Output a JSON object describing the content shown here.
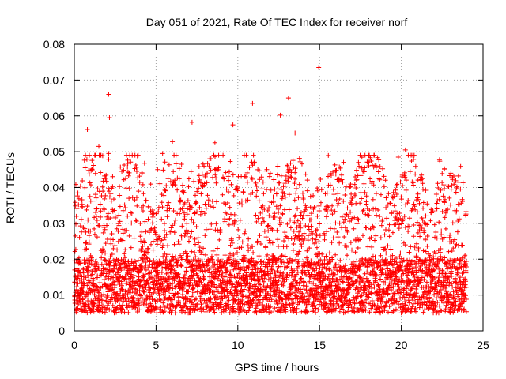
{
  "chart_data": {
    "type": "scatter",
    "title": "Day 051 of 2021, Rate Of TEC Index for receiver norf",
    "xlabel": "GPS time / hours",
    "ylabel": "ROTI / TECUs",
    "xlim": [
      0,
      25
    ],
    "ylim": [
      0,
      0.08
    ],
    "x_ticks": [
      0,
      5,
      10,
      15,
      20,
      25
    ],
    "x_tick_labels": [
      "0",
      "5",
      "10",
      "15",
      "20",
      "25"
    ],
    "y_ticks": [
      0,
      0.01,
      0.02,
      0.03,
      0.04,
      0.05,
      0.06,
      0.07,
      0.08
    ],
    "y_tick_labels": [
      "0",
      "0.01",
      "0.02",
      "0.03",
      "0.04",
      "0.05",
      "0.06",
      "0.07",
      "0.08"
    ],
    "grid": true,
    "marker": "+",
    "color": "#ff0000",
    "data_x_range_hours": [
      0,
      24
    ],
    "typical_band": [
      0.005,
      0.02
    ],
    "notable_points": [
      {
        "x": 14.95,
        "y": 0.0735
      },
      {
        "x": 2.1,
        "y": 0.066
      },
      {
        "x": 13.1,
        "y": 0.065
      },
      {
        "x": 10.9,
        "y": 0.0635
      },
      {
        "x": 12.6,
        "y": 0.0602
      },
      {
        "x": 2.15,
        "y": 0.0595
      },
      {
        "x": 7.2,
        "y": 0.0582
      },
      {
        "x": 9.7,
        "y": 0.0575
      },
      {
        "x": 0.8,
        "y": 0.0562
      },
      {
        "x": 1.5,
        "y": 0.0515
      },
      {
        "x": 20.25,
        "y": 0.0505
      },
      {
        "x": 8.6,
        "y": 0.0525
      },
      {
        "x": 13.5,
        "y": 0.0552
      },
      {
        "x": 6.0,
        "y": 0.0528
      },
      {
        "x": 5.4,
        "y": 0.0495
      },
      {
        "x": 2.1,
        "y": 0.0495
      }
    ]
  }
}
